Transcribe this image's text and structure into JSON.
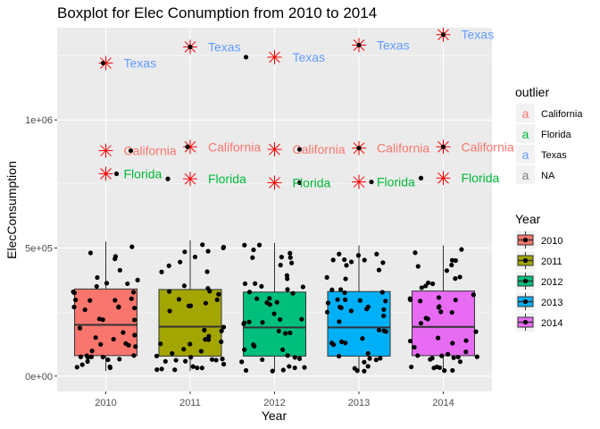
{
  "chart_data": {
    "type": "boxplot",
    "title": "Boxplot for Elec Conumption from 2010 to 2014",
    "xlabel": "Year",
    "ylabel": "ElecConsumption",
    "categories": [
      "2010",
      "2011",
      "2012",
      "2013",
      "2014"
    ],
    "ylim": [
      -60000,
      1360000
    ],
    "y_ticks": [
      0,
      500000,
      1000000
    ],
    "y_tick_labels": [
      "0e+00",
      "5e+05",
      "1e+06"
    ],
    "boxes": [
      {
        "year": "2010",
        "min": 20000,
        "q1": 80000,
        "median": 200000,
        "q3": 340000,
        "max": 525000,
        "color": "#F8766D"
      },
      {
        "year": "2011",
        "min": 20000,
        "q1": 78000,
        "median": 193000,
        "q3": 338000,
        "max": 530000,
        "color": "#A3A500"
      },
      {
        "year": "2012",
        "min": 18000,
        "q1": 78000,
        "median": 190000,
        "q3": 328000,
        "max": 520000,
        "color": "#00BF7D"
      },
      {
        "year": "2013",
        "min": 18000,
        "q1": 78000,
        "median": 190000,
        "q3": 330000,
        "max": 510000,
        "color": "#00B0F6"
      },
      {
        "year": "2014",
        "min": 18000,
        "q1": 80000,
        "median": 192000,
        "q3": 332000,
        "max": 510000,
        "color": "#E76BF3"
      }
    ],
    "outliers": [
      {
        "year": "2010",
        "state": "Texas",
        "value": 1222000
      },
      {
        "year": "2010",
        "state": "California",
        "value": 880000
      },
      {
        "year": "2010",
        "state": "Florida",
        "value": 790000
      },
      {
        "year": "2011",
        "state": "Texas",
        "value": 1285000
      },
      {
        "year": "2011",
        "state": "California",
        "value": 895000
      },
      {
        "year": "2011",
        "state": "Florida",
        "value": 770000
      },
      {
        "year": "2012",
        "state": "Texas",
        "value": 1245000
      },
      {
        "year": "2012",
        "state": "California",
        "value": 885000
      },
      {
        "year": "2012",
        "state": "Florida",
        "value": 755000
      },
      {
        "year": "2013",
        "state": "Texas",
        "value": 1292000
      },
      {
        "year": "2013",
        "state": "California",
        "value": 890000
      },
      {
        "year": "2013",
        "state": "Florida",
        "value": 758000
      },
      {
        "year": "2014",
        "state": "Texas",
        "value": 1333000
      },
      {
        "year": "2014",
        "state": "California",
        "value": 895000
      },
      {
        "year": "2014",
        "state": "Florida",
        "value": 773000
      }
    ],
    "legend_outlier": {
      "title": "outlier",
      "items": [
        {
          "label": "California",
          "color": "#F8766D"
        },
        {
          "label": "Florida",
          "color": "#00BA38"
        },
        {
          "label": "Texas",
          "color": "#619CFF"
        },
        {
          "label": "NA",
          "color": "#7F7F7F"
        }
      ]
    },
    "legend_year": {
      "title": "Year",
      "items": [
        {
          "label": "2010",
          "color": "#F8766D"
        },
        {
          "label": "2011",
          "color": "#A3A500"
        },
        {
          "label": "2012",
          "color": "#00BF7D"
        },
        {
          "label": "2013",
          "color": "#00B0F6"
        },
        {
          "label": "2014",
          "color": "#E76BF3"
        }
      ]
    },
    "legend_position": "right",
    "grid": true,
    "label_colors": {
      "California": "#F8766D",
      "Florida": "#00BA38",
      "Texas": "#619CFF"
    },
    "outlier_marker_color": "#FF0000",
    "panel_background": "#EBEBEB"
  }
}
